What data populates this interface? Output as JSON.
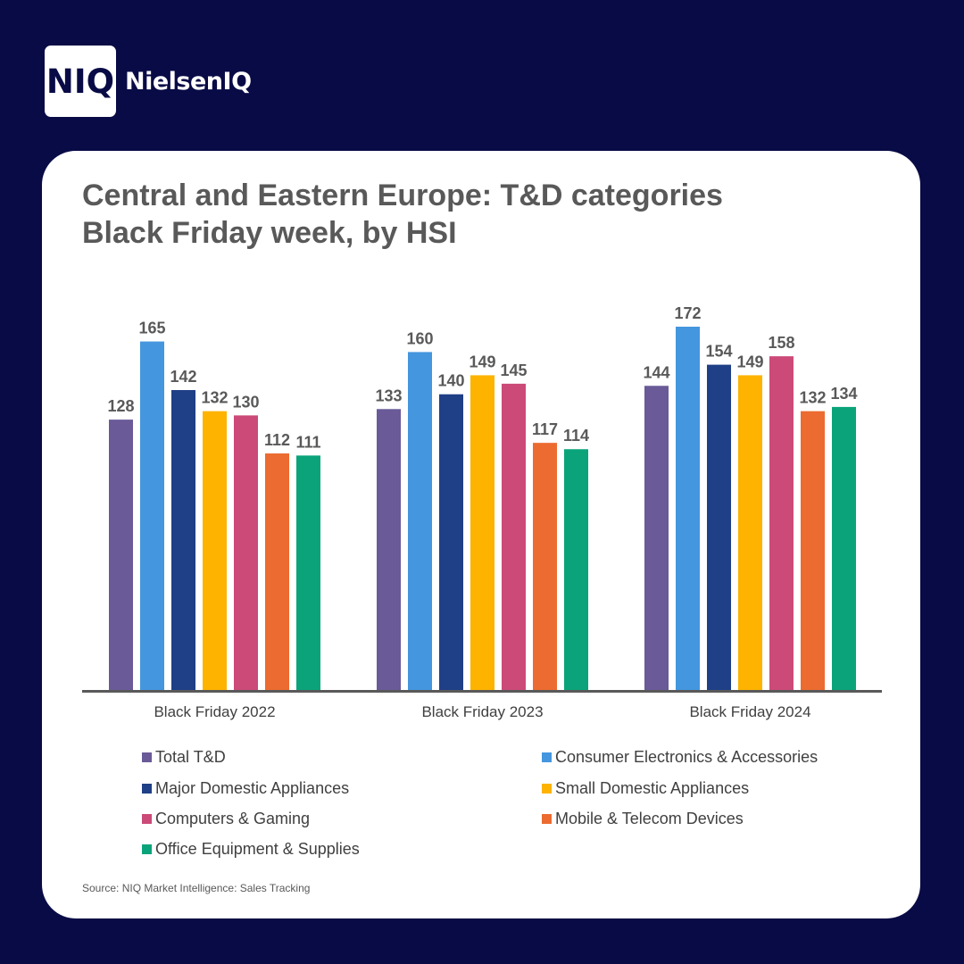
{
  "brand": {
    "logo_text": "NIQ",
    "name": "NielsenIQ"
  },
  "title_lines": [
    "Central and Eastern Europe: T&D categories",
    "Black Friday week, by HSI"
  ],
  "source": "Source: NIQ Market Intelligence: Sales Tracking",
  "chart_data": {
    "type": "bar",
    "title": "Central and Eastern Europe: T&D categories Black Friday week, by HSI",
    "xlabel": "",
    "ylabel": "",
    "ylim": [
      0,
      172
    ],
    "grid": false,
    "legend_position": "bottom",
    "categories": [
      "Black Friday 2022",
      "Black Friday 2023",
      "Black Friday 2024"
    ],
    "series": [
      {
        "name": "Total T&D",
        "color": "#6a5a98",
        "values": [
          128,
          133,
          144
        ]
      },
      {
        "name": "Consumer Electronics & Accessories",
        "color": "#4496de",
        "values": [
          165,
          160,
          172
        ]
      },
      {
        "name": "Major Domestic Appliances",
        "color": "#1f3f86",
        "values": [
          142,
          140,
          154
        ]
      },
      {
        "name": "Small Domestic Appliances",
        "color": "#fdb300",
        "values": [
          132,
          149,
          149
        ]
      },
      {
        "name": "Computers & Gaming",
        "color": "#cb4a78",
        "values": [
          130,
          145,
          158
        ]
      },
      {
        "name": "Mobile & Telecom Devices",
        "color": "#ec6b30",
        "values": [
          112,
          117,
          132
        ]
      },
      {
        "name": "Office Equipment & Supplies",
        "color": "#0ba47a",
        "values": [
          111,
          114,
          134
        ]
      }
    ],
    "data_labels": true
  }
}
